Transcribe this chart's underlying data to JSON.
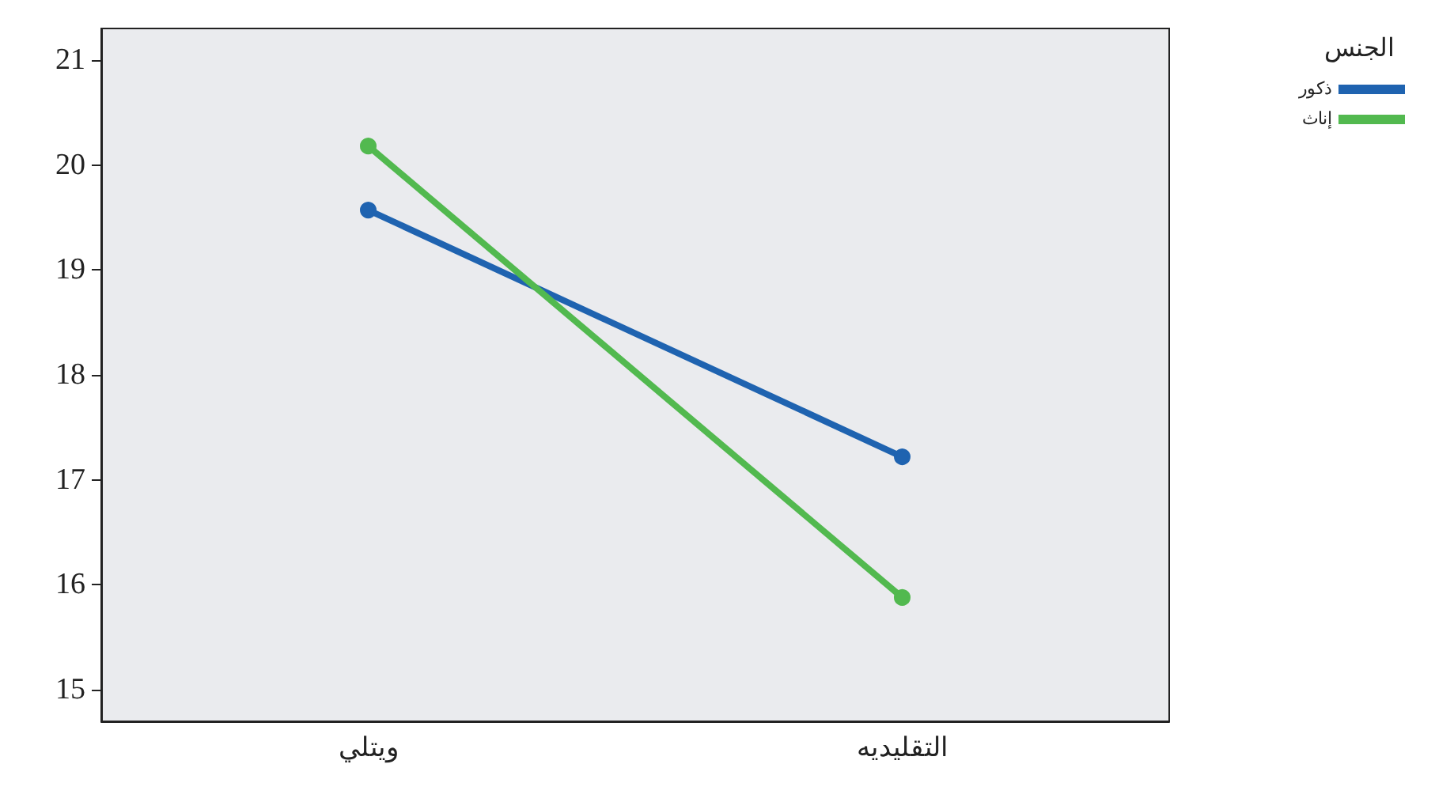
{
  "chart_data": {
    "type": "line",
    "categories": [
      "ويتلي",
      "التقليديه"
    ],
    "series": [
      {
        "name": "ذكور",
        "color": "#1f63b0",
        "values": [
          19.57,
          17.22
        ]
      },
      {
        "name": "إناث",
        "color": "#52b94f",
        "values": [
          20.18,
          15.88
        ]
      }
    ],
    "ylim": [
      14.7,
      21.3
    ],
    "yticks": [
      15,
      16,
      17,
      18,
      19,
      20,
      21
    ],
    "legend": "top right",
    "legend_title": "الجنس",
    "marker": "circle",
    "grid": false
  }
}
